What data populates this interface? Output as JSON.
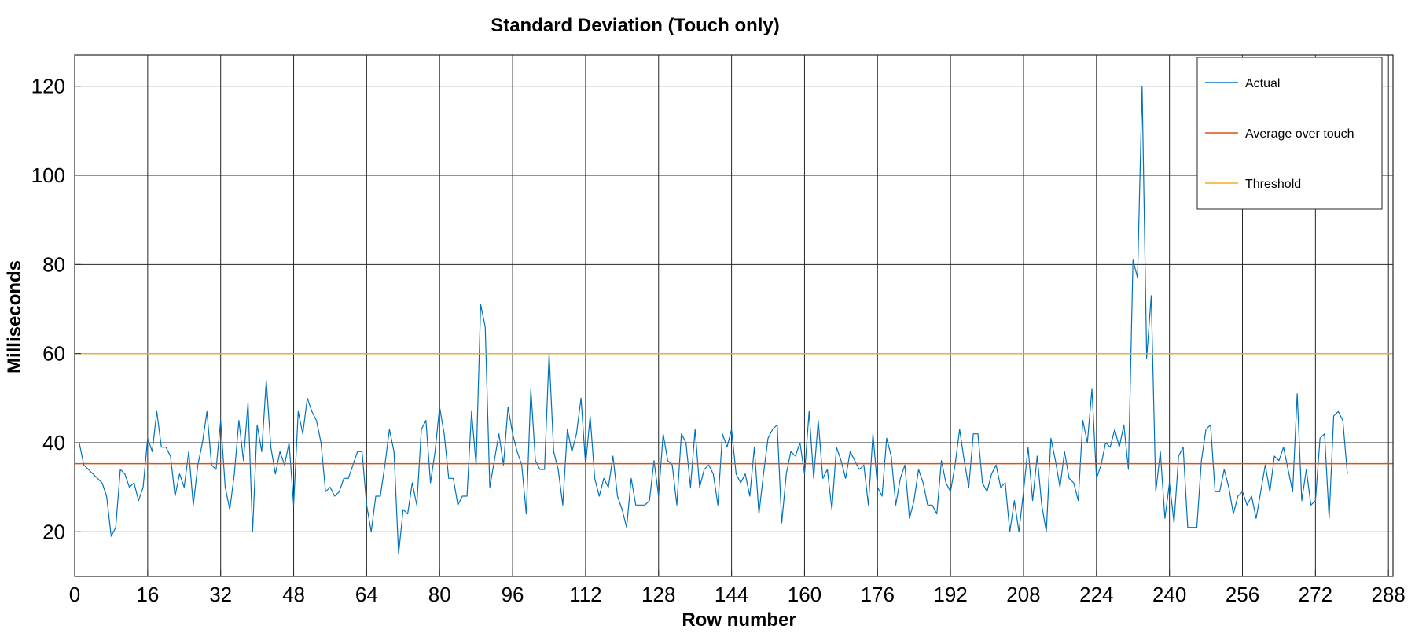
{
  "chart_data": {
    "type": "line",
    "title": "Standard Deviation (Touch only)",
    "xlabel": "Row number",
    "ylabel": "Milliseconds",
    "xlim": [
      0,
      289
    ],
    "ylim": [
      10,
      127
    ],
    "xticks": [
      0,
      16,
      32,
      48,
      64,
      80,
      96,
      112,
      128,
      144,
      160,
      176,
      192,
      208,
      224,
      240,
      256,
      272,
      288
    ],
    "yticks": [
      20,
      40,
      60,
      80,
      100,
      120
    ],
    "grid": true,
    "legend_position": "top-right",
    "series": [
      {
        "name": "Actual",
        "color": "#0072BD",
        "x_start": 1,
        "x_step": 1,
        "values": [
          40,
          35,
          34,
          33,
          32,
          31,
          28,
          19,
          21,
          34,
          33,
          30,
          31,
          27,
          30,
          41,
          38,
          47,
          39,
          39,
          37,
          28,
          33,
          30,
          38,
          26,
          35,
          40,
          47,
          35,
          34,
          45,
          30,
          25,
          33,
          45,
          36,
          49,
          20,
          44,
          38,
          54,
          39,
          33,
          38,
          35,
          40,
          26,
          47,
          42,
          50,
          47,
          45,
          40,
          29,
          30,
          28,
          29,
          32,
          32,
          35,
          38,
          38,
          26,
          20,
          28,
          28,
          35,
          43,
          38,
          15,
          25,
          24,
          31,
          26,
          43,
          45,
          31,
          38,
          48,
          42,
          32,
          32,
          26,
          28,
          28,
          47,
          35,
          71,
          66,
          30,
          36,
          42,
          35,
          48,
          42,
          38,
          35,
          24,
          52,
          36,
          34,
          34,
          60,
          38,
          34,
          26,
          43,
          38,
          42,
          50,
          35,
          46,
          32,
          28,
          32,
          30,
          37,
          28,
          25,
          21,
          32,
          26,
          26,
          26,
          27,
          36,
          28,
          42,
          36,
          35,
          26,
          42,
          40,
          30,
          43,
          30,
          34,
          35,
          33,
          26,
          42,
          39,
          43,
          33,
          31,
          33,
          28,
          39,
          24,
          33,
          41,
          43,
          44,
          22,
          33,
          38,
          37,
          40,
          33,
          47,
          32,
          45,
          32,
          34,
          25,
          39,
          36,
          32,
          38,
          36,
          34,
          35,
          26,
          42,
          30,
          28,
          41,
          37,
          26,
          32,
          35,
          23,
          27,
          34,
          31,
          26,
          26,
          24,
          36,
          31,
          29,
          35,
          43,
          36,
          30,
          42,
          42,
          31,
          29,
          33,
          35,
          30,
          31,
          20,
          27,
          20,
          29,
          39,
          27,
          37,
          26,
          20,
          41,
          36,
          30,
          38,
          32,
          31,
          27,
          45,
          40,
          52,
          32,
          35,
          40,
          39,
          43,
          39,
          44,
          34,
          81,
          77,
          120,
          59,
          73,
          29,
          38,
          23,
          31,
          22,
          37,
          39,
          21,
          21,
          21,
          36,
          43,
          44,
          29,
          29,
          34,
          30,
          24,
          28,
          29,
          26,
          28,
          23,
          29,
          35,
          29,
          37,
          36,
          39,
          34,
          29,
          51,
          27,
          34,
          26,
          27,
          41,
          42,
          23,
          46,
          47,
          45,
          33
        ]
      },
      {
        "name": "Average over touch",
        "color": "#D95319",
        "constant": 35.3
      },
      {
        "name": "Threshold",
        "color": "#EDB120",
        "constant": 60
      }
    ]
  }
}
